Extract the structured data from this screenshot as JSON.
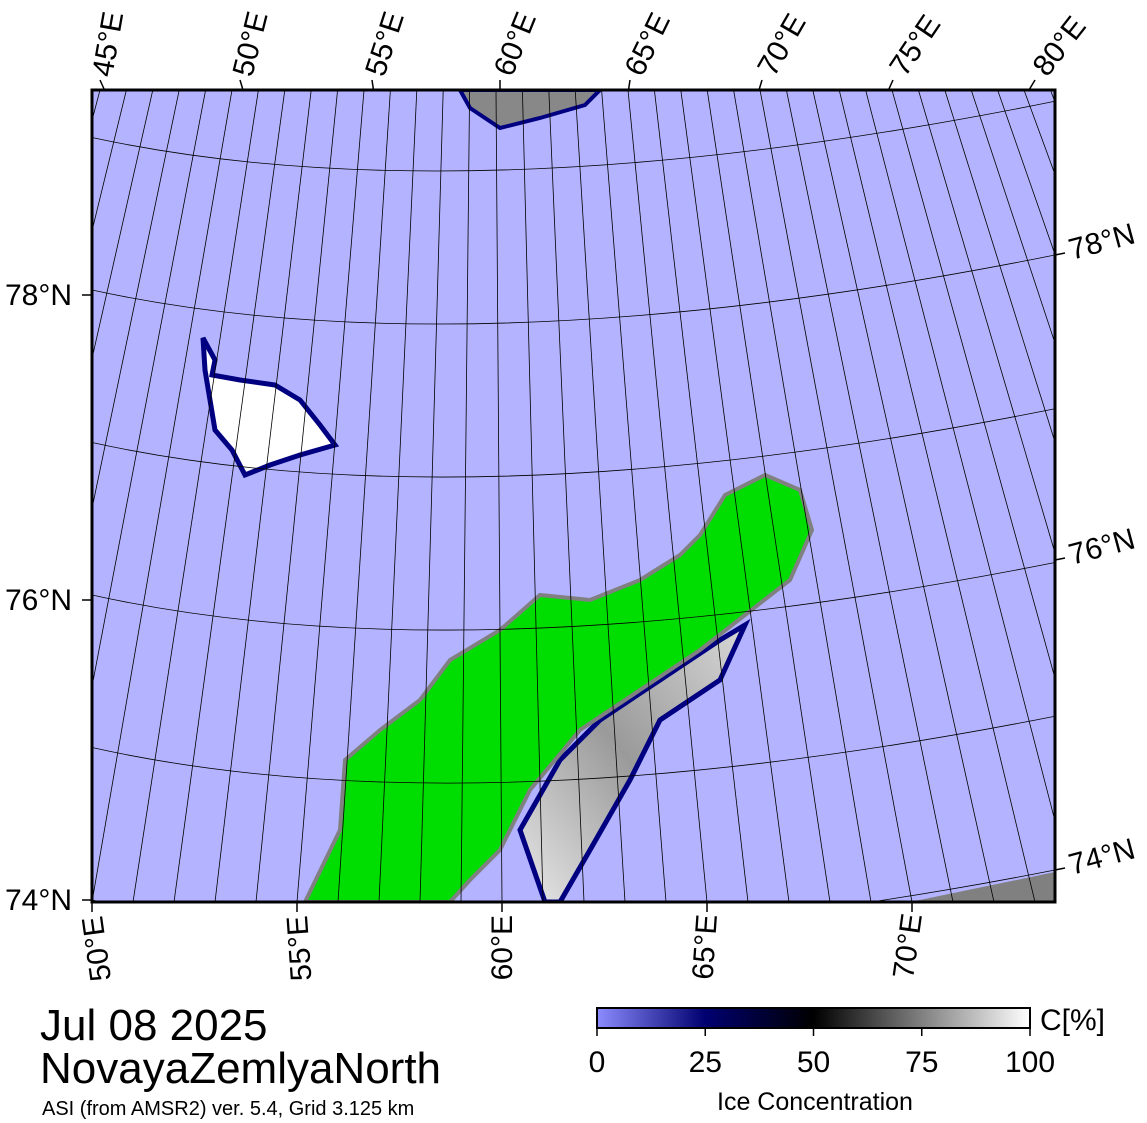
{
  "header": {
    "date": "Jul 08 2025",
    "region": "NovayaZemlyaNorth",
    "source": "ASI (from AMSR2) ver. 5.4,  Grid 3.125 km"
  },
  "map": {
    "top_lon_labels": [
      "45°E",
      "50°E",
      "55°E",
      "60°E",
      "65°E",
      "70°E",
      "75°E",
      "80°E"
    ],
    "bottom_lon_labels": [
      "50°E",
      "55°E",
      "60°E",
      "65°E",
      "70°E"
    ],
    "left_lat_labels": [
      "78°N",
      "76°N",
      "74°N"
    ],
    "right_lat_labels": [
      "78°N",
      "76°N",
      "74°N"
    ]
  },
  "colorbar": {
    "label": "Ice Concentration",
    "unit": "C[%]",
    "range": [
      0,
      100
    ],
    "ticks": [
      0,
      25,
      50,
      75,
      100
    ]
  }
}
